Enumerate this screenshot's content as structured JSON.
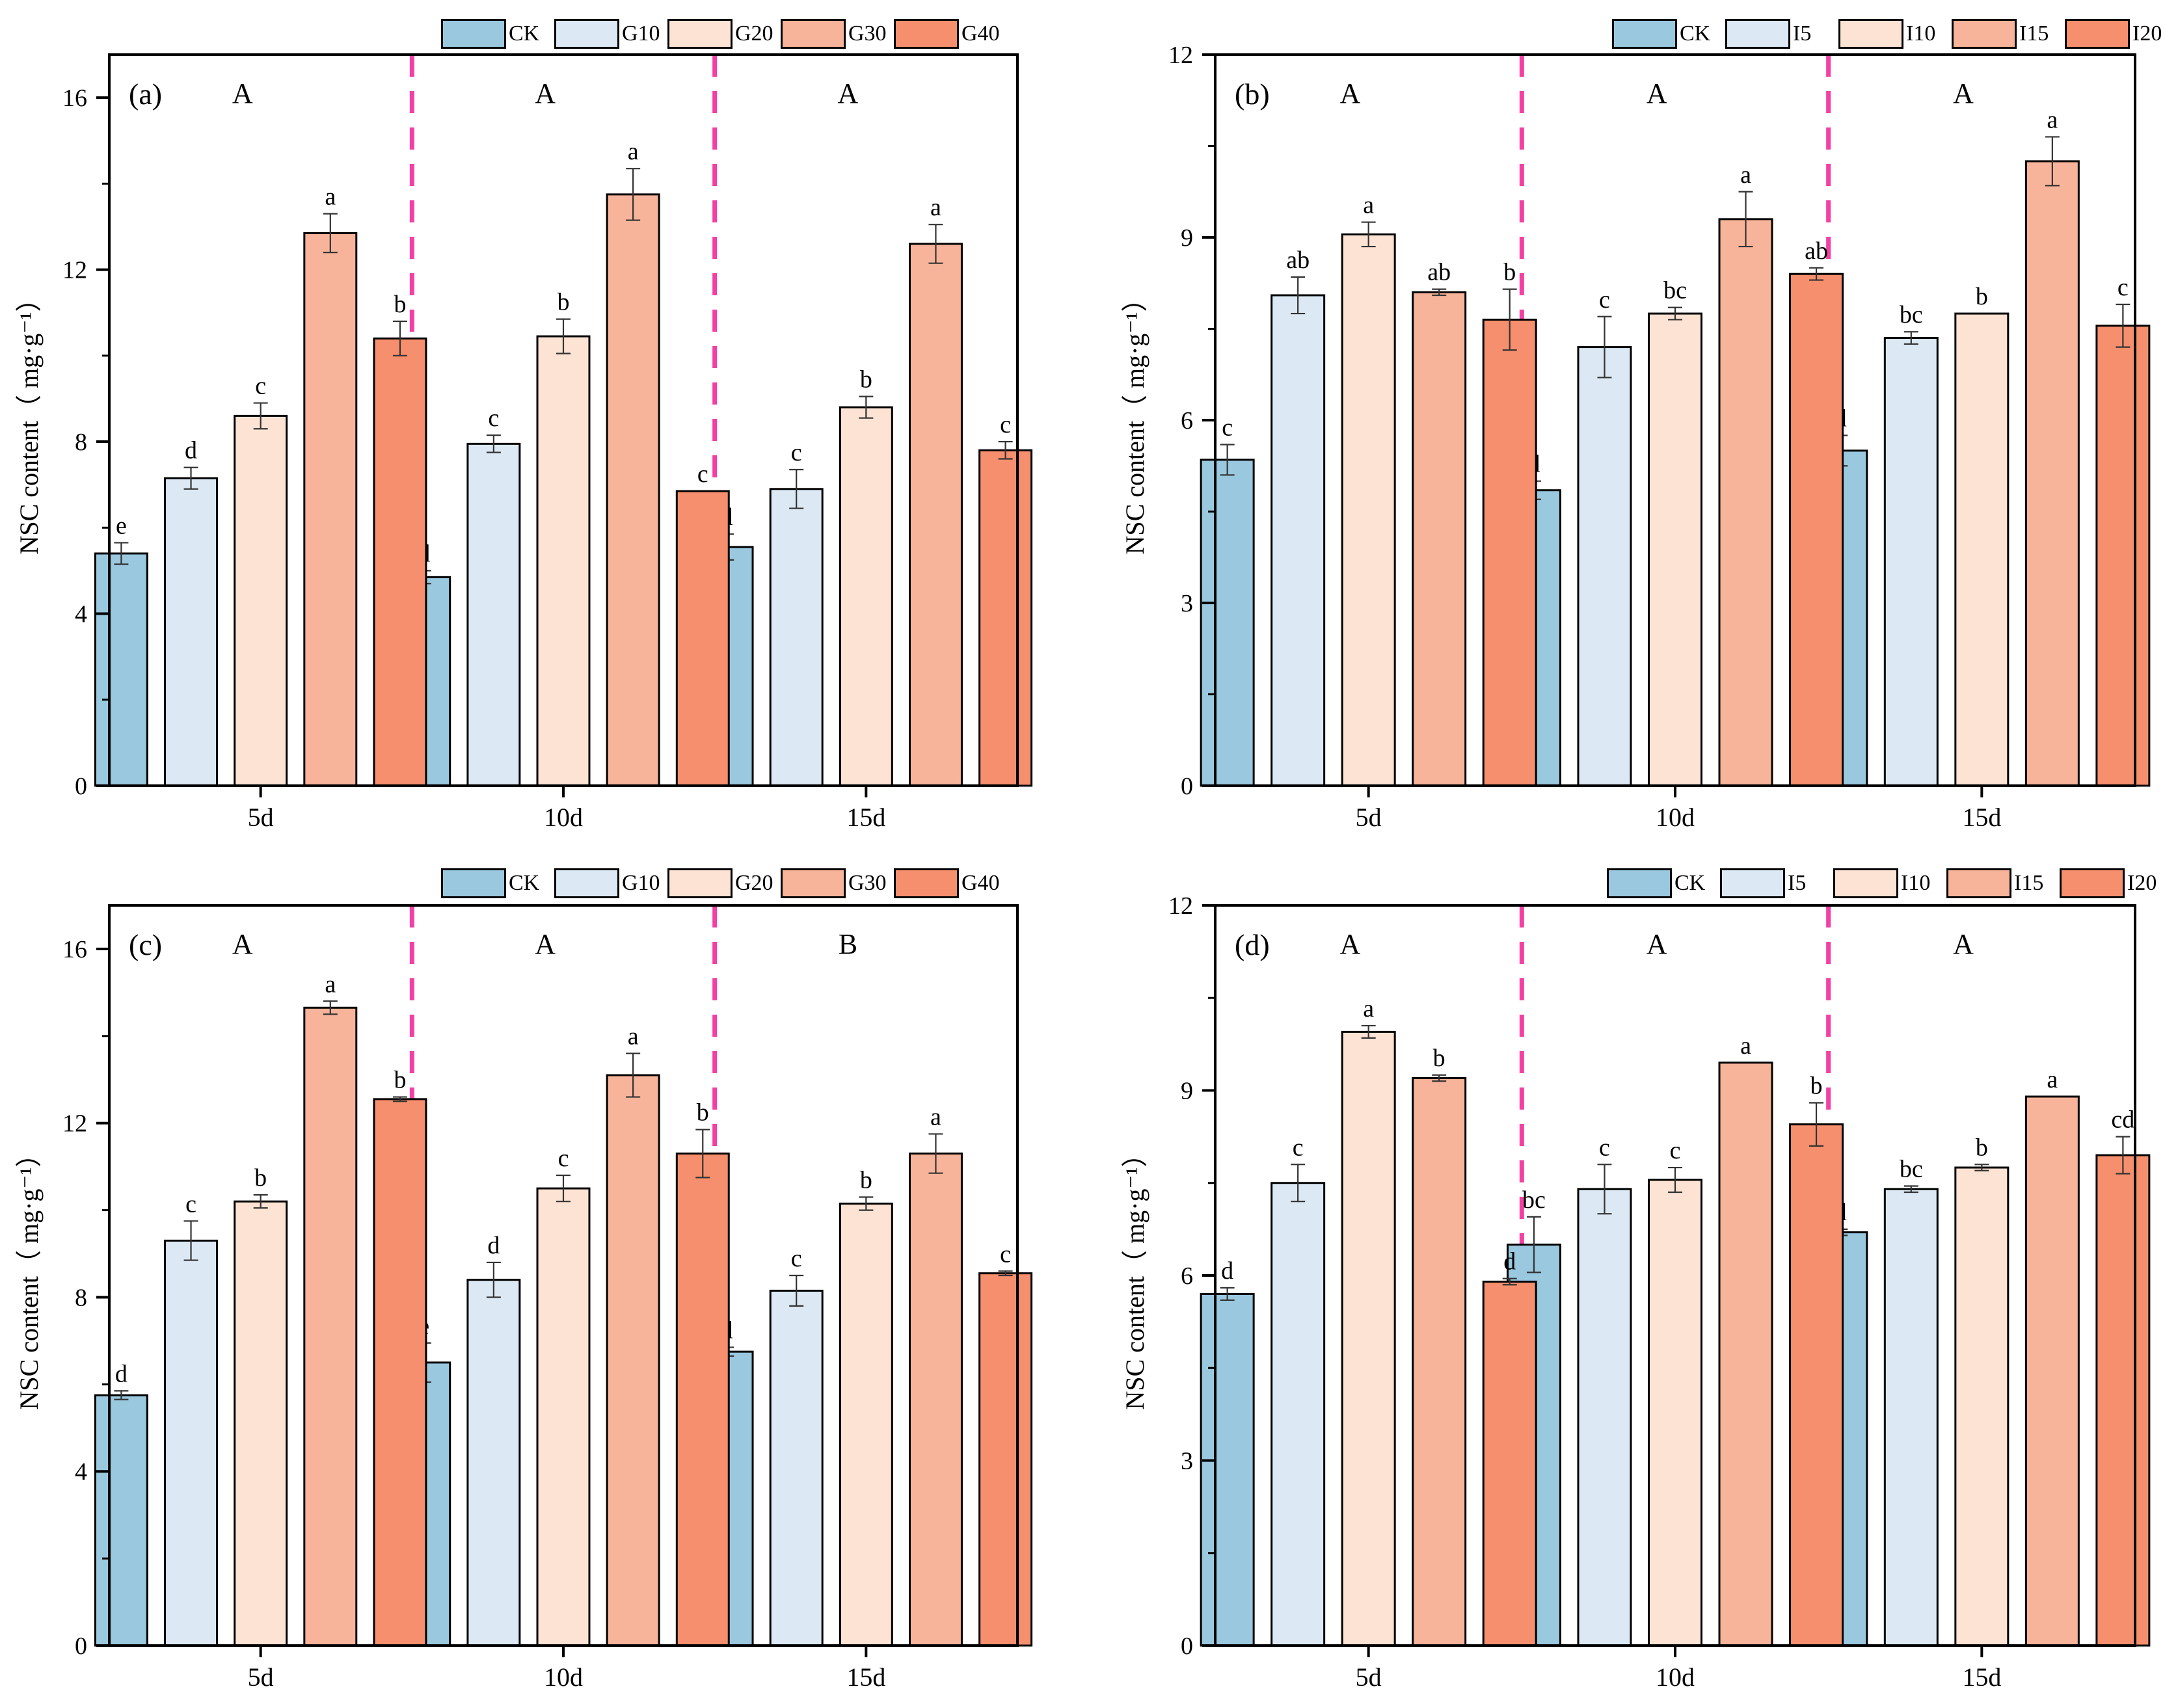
{
  "colors": {
    "CK": "#9ac8df",
    "c2": "#dce9f4",
    "c3": "#fde3d3",
    "c4": "#f8b49a",
    "c5": "#f68f6d",
    "divider": "#f43fa5",
    "axis": "#000000"
  },
  "chart_data": [
    {
      "type": "bar",
      "panel_label": "(a)",
      "categories": [
        "5d",
        "10d",
        "15d"
      ],
      "group_letters": [
        "A",
        "A",
        "A"
      ],
      "ylabel": "NSC content（ mg·g⁻¹）",
      "ylim": [
        0,
        17
      ],
      "yticks": [
        0,
        4,
        8,
        12,
        16
      ],
      "legend": [
        "CK",
        "G10",
        "G20",
        "G30",
        "G40"
      ],
      "series": [
        {
          "name": "CK",
          "values": [
            5.4,
            4.85,
            5.55
          ],
          "errors": [
            0.25,
            0.15,
            0.3
          ],
          "letters": [
            "e",
            "d",
            "d"
          ]
        },
        {
          "name": "G10",
          "values": [
            7.15,
            7.95,
            6.9
          ],
          "errors": [
            0.25,
            0.2,
            0.45
          ],
          "letters": [
            "d",
            "c",
            "c"
          ]
        },
        {
          "name": "G20",
          "values": [
            8.6,
            10.45,
            8.8
          ],
          "errors": [
            0.3,
            0.4,
            0.25
          ],
          "letters": [
            "c",
            "b",
            "b"
          ]
        },
        {
          "name": "G30",
          "values": [
            12.85,
            13.75,
            12.6
          ],
          "errors": [
            0.45,
            0.6,
            0.45
          ],
          "letters": [
            "a",
            "a",
            "a"
          ]
        },
        {
          "name": "G40",
          "values": [
            10.4,
            6.85,
            7.8
          ],
          "errors": [
            0.4,
            0.0,
            0.2
          ],
          "letters": [
            "b",
            "c",
            "c"
          ]
        }
      ]
    },
    {
      "type": "bar",
      "panel_label": "(b)",
      "categories": [
        "5d",
        "10d",
        "15d"
      ],
      "group_letters": [
        "A",
        "A",
        "A"
      ],
      "ylabel": "NSC content（ mg·g⁻¹）",
      "ylim": [
        0,
        12
      ],
      "yticks": [
        0,
        3,
        6,
        9,
        12
      ],
      "legend": [
        "CK",
        "I5",
        "I10",
        "I15",
        "I20"
      ],
      "series": [
        {
          "name": "CK",
          "values": [
            5.35,
            4.85,
            5.5
          ],
          "errors": [
            0.25,
            0.15,
            0.25
          ],
          "letters": [
            "c",
            "d",
            "d"
          ]
        },
        {
          "name": "I5",
          "values": [
            8.05,
            7.2,
            7.35
          ],
          "errors": [
            0.3,
            0.5,
            0.1
          ],
          "letters": [
            "ab",
            "c",
            "bc"
          ]
        },
        {
          "name": "I10",
          "values": [
            9.05,
            7.75,
            7.75
          ],
          "errors": [
            0.2,
            0.1,
            0.0
          ],
          "letters": [
            "a",
            "bc",
            "b"
          ]
        },
        {
          "name": "I15",
          "values": [
            8.1,
            9.3,
            10.25
          ],
          "errors": [
            0.05,
            0.45,
            0.4
          ],
          "letters": [
            "ab",
            "a",
            "a"
          ]
        },
        {
          "name": "I20",
          "values": [
            7.65,
            8.4,
            7.55
          ],
          "errors": [
            0.5,
            0.1,
            0.35
          ],
          "letters": [
            "b",
            "ab",
            "c"
          ]
        }
      ]
    },
    {
      "type": "bar",
      "panel_label": "(c)",
      "categories": [
        "5d",
        "10d",
        "15d"
      ],
      "group_letters": [
        "A",
        "A",
        "B"
      ],
      "ylabel": "NSC content（ mg·g⁻¹）",
      "ylim": [
        0,
        17
      ],
      "yticks": [
        0,
        4,
        8,
        12,
        16
      ],
      "legend": [
        "CK",
        "G10",
        "G20",
        "G30",
        "G40"
      ],
      "series": [
        {
          "name": "CK",
          "values": [
            5.75,
            6.5,
            6.75
          ],
          "errors": [
            0.1,
            0.45,
            0.1
          ],
          "letters": [
            "d",
            "e",
            "d"
          ]
        },
        {
          "name": "G10",
          "values": [
            9.3,
            8.4,
            8.15
          ],
          "errors": [
            0.45,
            0.4,
            0.35
          ],
          "letters": [
            "c",
            "d",
            "c"
          ]
        },
        {
          "name": "G20",
          "values": [
            10.2,
            10.5,
            10.15
          ],
          "errors": [
            0.15,
            0.3,
            0.15
          ],
          "letters": [
            "b",
            "c",
            "b"
          ]
        },
        {
          "name": "G30",
          "values": [
            14.65,
            13.1,
            11.3
          ],
          "errors": [
            0.15,
            0.5,
            0.45
          ],
          "letters": [
            "a",
            "a",
            "a"
          ]
        },
        {
          "name": "G40",
          "values": [
            12.55,
            11.3,
            8.55
          ],
          "errors": [
            0.05,
            0.55,
            0.05
          ],
          "letters": [
            "b",
            "b",
            "c"
          ]
        }
      ]
    },
    {
      "type": "bar",
      "panel_label": "(d)",
      "categories": [
        "5d",
        "10d",
        "15d"
      ],
      "group_letters": [
        "A",
        "A",
        "A"
      ],
      "ylabel": "NSC content（ mg·g⁻¹）",
      "ylim": [
        0,
        12
      ],
      "yticks": [
        0,
        3,
        6,
        9,
        12
      ],
      "legend": [
        "CK",
        "I5",
        "I10",
        "I15",
        "I20"
      ],
      "series": [
        {
          "name": "CK",
          "values": [
            5.7,
            6.5,
            6.7
          ],
          "errors": [
            0.1,
            0.45,
            0.05
          ],
          "letters": [
            "d",
            "bc",
            "d"
          ]
        },
        {
          "name": "I5",
          "values": [
            7.5,
            7.4,
            7.4
          ],
          "errors": [
            0.3,
            0.4,
            0.05
          ],
          "letters": [
            "c",
            "c",
            "bc"
          ]
        },
        {
          "name": "I10",
          "values": [
            9.95,
            7.55,
            7.75
          ],
          "errors": [
            0.1,
            0.2,
            0.05
          ],
          "letters": [
            "a",
            "c",
            "b"
          ]
        },
        {
          "name": "I15",
          "values": [
            9.2,
            9.45,
            8.9
          ],
          "errors": [
            0.05,
            0.0,
            0.0
          ],
          "letters": [
            "b",
            "a",
            "a"
          ]
        },
        {
          "name": "I20",
          "values": [
            5.9,
            8.45,
            7.95
          ],
          "errors": [
            0.05,
            0.35,
            0.3
          ],
          "letters": [
            "d",
            "b",
            "cd"
          ]
        }
      ]
    }
  ]
}
